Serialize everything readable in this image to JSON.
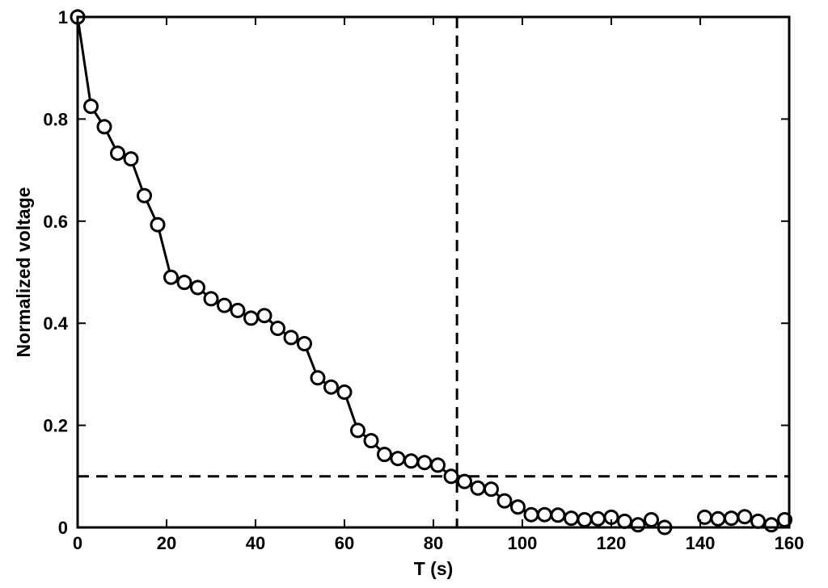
{
  "chart_data": {
    "type": "line",
    "title": "",
    "xlabel": "T (s)",
    "ylabel": "Normalized voltage",
    "xlim": [
      0,
      160
    ],
    "ylim": [
      0,
      1
    ],
    "xticks": [
      "0",
      "20",
      "40",
      "60",
      "80",
      "100",
      "120",
      "140",
      "160"
    ],
    "yticks": [
      "0",
      "0.2",
      "0.4",
      "0.6",
      "0.8",
      "1"
    ],
    "grid": false,
    "legend": "none",
    "series": [
      {
        "marker": "open-circle",
        "color": "#000000",
        "segments": [
          [
            [
              0,
              1.0
            ],
            [
              3,
              0.825
            ],
            [
              6,
              0.785
            ],
            [
              9,
              0.733
            ],
            [
              12,
              0.722
            ],
            [
              15,
              0.65
            ],
            [
              18,
              0.593
            ],
            [
              21,
              0.49
            ],
            [
              24,
              0.48
            ],
            [
              27,
              0.47
            ],
            [
              30,
              0.448
            ],
            [
              33,
              0.435
            ],
            [
              36,
              0.425
            ],
            [
              39,
              0.41
            ],
            [
              42,
              0.415
            ],
            [
              45,
              0.39
            ],
            [
              48,
              0.372
            ],
            [
              51,
              0.36
            ],
            [
              54,
              0.293
            ],
            [
              57,
              0.275
            ],
            [
              60,
              0.265
            ],
            [
              63,
              0.19
            ],
            [
              66,
              0.17
            ],
            [
              69,
              0.143
            ],
            [
              72,
              0.135
            ],
            [
              75,
              0.13
            ],
            [
              78,
              0.127
            ],
            [
              81,
              0.122
            ],
            [
              84,
              0.1
            ],
            [
              87,
              0.09
            ],
            [
              90,
              0.077
            ],
            [
              93,
              0.075
            ],
            [
              96,
              0.052
            ],
            [
              99,
              0.04
            ],
            [
              102,
              0.025
            ],
            [
              105,
              0.025
            ],
            [
              108,
              0.024
            ],
            [
              111,
              0.018
            ],
            [
              114,
              0.015
            ],
            [
              117,
              0.017
            ],
            [
              120,
              0.02
            ],
            [
              123,
              0.012
            ],
            [
              126,
              0.005
            ],
            [
              129,
              0.015
            ],
            [
              132,
              0.0
            ]
          ],
          [
            [
              141,
              0.02
            ],
            [
              144,
              0.017
            ],
            [
              147,
              0.018
            ],
            [
              150,
              0.021
            ],
            [
              153,
              0.012
            ],
            [
              156,
              0.005
            ],
            [
              159,
              0.015
            ]
          ]
        ]
      }
    ],
    "reference_lines": [
      {
        "orientation": "horizontal",
        "value": 0.1,
        "style": "dashed"
      },
      {
        "orientation": "vertical",
        "value": 85.3,
        "style": "dashed"
      }
    ]
  }
}
